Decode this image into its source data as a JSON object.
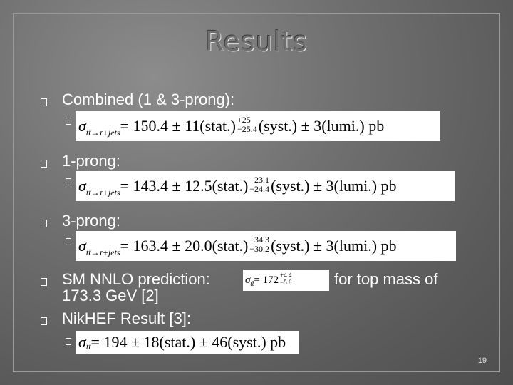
{
  "slide": {
    "title": "Results",
    "page_number": "19"
  },
  "items": [
    {
      "label": "Combined (1 & 3-prong):",
      "formula": {
        "sigma": "σ",
        "sub": "tt̄→τ+jets",
        "eq": " = 150.4 ± 11(stat.)",
        "sup": "+25",
        "subv": "−25.4",
        "tail": "(syst.) ± 3(lumi.) pb"
      }
    },
    {
      "label": "1-prong:",
      "formula": {
        "sigma": "σ",
        "sub": "tt̄→τ+jets",
        "eq": " = 143.4 ± 12.5(stat.)",
        "sup": "+23.1",
        "subv": "−24.4",
        "tail": "(syst.) ± 3(lumi.) pb"
      }
    },
    {
      "label": "3-prong:",
      "formula": {
        "sigma": "σ",
        "sub": "tt̄→τ+jets",
        "eq": " = 163.4 ± 20.0(stat.)",
        "sup": "+34.3",
        "subv": "−30.2",
        "tail": "(syst.) ± 3(lumi.) pb"
      }
    },
    {
      "label": "SM NNLO prediction:",
      "label_after": "for top mass of",
      "label_line2": "173.3 GeV [2]",
      "formula": {
        "sigma": "σ",
        "sub": "tt̄",
        "eq": " = 172",
        "sup": "+4.4",
        "subv": "−5.8"
      }
    },
    {
      "label": "NikHEF Result [3]:",
      "formula": {
        "sigma": "σ",
        "sub": "tt̄",
        "eq": " = 194 ± 18(stat.) ± 46(syst.) pb"
      }
    }
  ]
}
